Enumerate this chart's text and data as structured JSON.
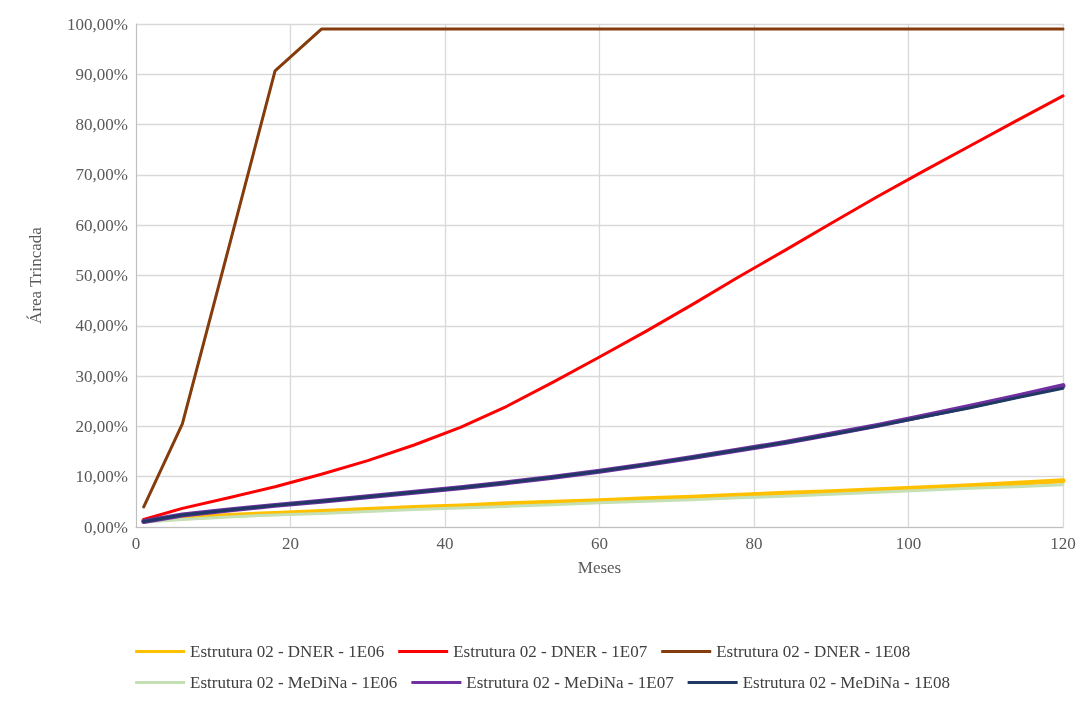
{
  "chart_data": {
    "type": "line",
    "xlabel": "Meses",
    "ylabel": "Área Trincada",
    "x": [
      1,
      6,
      12,
      18,
      24,
      30,
      36,
      42,
      48,
      54,
      60,
      66,
      72,
      78,
      84,
      90,
      96,
      102,
      108,
      114,
      120
    ],
    "xlim": [
      0,
      120
    ],
    "xticks": [
      0,
      20,
      40,
      60,
      80,
      100,
      120
    ],
    "ylim": [
      0,
      100
    ],
    "yticks": [
      {
        "value": 0,
        "label": "0,00%"
      },
      {
        "value": 10,
        "label": "10,00%"
      },
      {
        "value": 20,
        "label": "20,00%"
      },
      {
        "value": 30,
        "label": "30,00%"
      },
      {
        "value": 40,
        "label": "40,00%"
      },
      {
        "value": 50,
        "label": "50,00%"
      },
      {
        "value": 60,
        "label": "60,00%"
      },
      {
        "value": 70,
        "label": "70,00%"
      },
      {
        "value": 80,
        "label": "80,00%"
      },
      {
        "value": 90,
        "label": "90,00%"
      },
      {
        "value": 100,
        "label": "100,00%"
      }
    ],
    "grid": true,
    "legend": "bottom",
    "marker": "none",
    "line_style": "solid",
    "series": [
      {
        "name": "Estrutura 02 - DNER - 1E06",
        "color": "#ffc000",
        "values": [
          1.3,
          1.8,
          2.3,
          2.7,
          3.1,
          3.5,
          3.9,
          4.2,
          4.6,
          4.9,
          5.2,
          5.6,
          5.9,
          6.3,
          6.7,
          7.0,
          7.4,
          7.8,
          8.2,
          8.7,
          9.2
        ]
      },
      {
        "name": "Estrutura 02 - DNER - 1E07",
        "color": "#ff0000",
        "values": [
          1.5,
          3.7,
          5.8,
          8.0,
          10.5,
          13.2,
          16.3,
          19.8,
          24.0,
          28.8,
          33.8,
          38.9,
          44.2,
          49.7,
          55.0,
          60.4,
          65.7,
          70.8,
          75.8,
          80.8,
          85.7
        ]
      },
      {
        "name": "Estrutura 02 - DNER - 1E08",
        "color": "#843c0c",
        "values": [
          4.0,
          20.5,
          55.5,
          90.7,
          99,
          99,
          99,
          99,
          99,
          99,
          99,
          99,
          99,
          99,
          99,
          99,
          99,
          99,
          99,
          99,
          99
        ]
      },
      {
        "name": "Estrutura 02 - MeDiNa - 1E06",
        "color": "#c5e0b4",
        "values": [
          1.0,
          1.5,
          2.0,
          2.4,
          2.7,
          3.1,
          3.5,
          3.8,
          4.1,
          4.4,
          4.8,
          5.1,
          5.4,
          5.8,
          6.1,
          6.5,
          6.9,
          7.3,
          7.7,
          8.0,
          8.4
        ]
      },
      {
        "name": "Estrutura 02 - MeDiNa - 1E07",
        "color": "#7030a0",
        "values": [
          1.1,
          2.4,
          3.4,
          4.3,
          5.1,
          6.0,
          6.9,
          7.8,
          8.8,
          9.9,
          11.1,
          12.4,
          13.8,
          15.3,
          16.8,
          18.5,
          20.2,
          22.1,
          24.0,
          26.0,
          28.1
        ]
      },
      {
        "name": "Estrutura 02 - MeDiNa - 1E08",
        "color": "#203864",
        "values": [
          1.1,
          2.4,
          3.4,
          4.3,
          5.1,
          6.0,
          6.9,
          7.8,
          8.8,
          9.9,
          11.1,
          12.4,
          13.8,
          15.3,
          16.8,
          18.4,
          20.1,
          21.9,
          23.7,
          25.7,
          27.6
        ]
      }
    ]
  }
}
